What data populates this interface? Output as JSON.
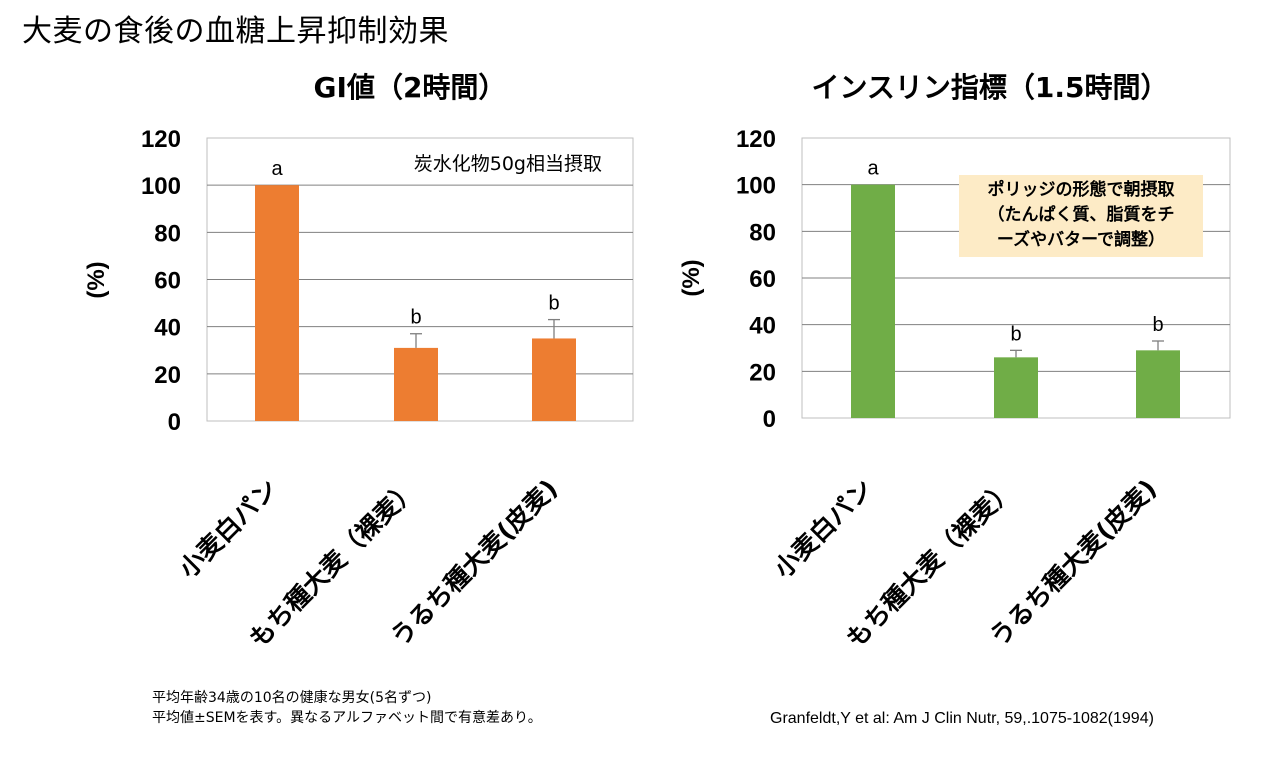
{
  "page": {
    "title": "大麦の食後の血糖上昇抑制効果"
  },
  "chart_data": [
    {
      "type": "bar",
      "title": "GI値（2時間）",
      "ylabel": "(%)",
      "ylim": [
        0,
        120
      ],
      "yticks": [
        "0",
        "20",
        "40",
        "60",
        "80",
        "100",
        "120"
      ],
      "categories": [
        "小麦白パン",
        "もち種大麦（裸麦）",
        "うるち種大麦(皮麦)"
      ],
      "values": [
        100,
        31,
        35
      ],
      "errors": [
        0,
        6,
        8
      ],
      "sig_labels": [
        "a",
        "b",
        "b"
      ],
      "bar_color": "#ED7D31",
      "annotation": "炭水化物50g相当摂取",
      "grid": true
    },
    {
      "type": "bar",
      "title": "インスリン指標（1.5時間）",
      "ylabel": "(%)",
      "ylim": [
        0,
        120
      ],
      "yticks": [
        "0",
        "20",
        "40",
        "60",
        "80",
        "100",
        "120"
      ],
      "categories": [
        "小麦白パン",
        "もち種大麦（裸麦）",
        "うるち種大麦(皮麦)"
      ],
      "values": [
        100,
        26,
        29
      ],
      "errors": [
        0,
        3,
        4
      ],
      "sig_labels": [
        "a",
        "b",
        "b"
      ],
      "bar_color": "#70AD47",
      "annotation_lines": [
        "ポリッジの形態で朝摂取",
        "（たんぱく質、脂質をチ",
        "ーズやバターで調整）"
      ],
      "annotation_bg": "#FDEBC6",
      "grid": true
    }
  ],
  "footnote": {
    "line1": "平均年齢34歳の10名の健康な男女(5名ずつ)",
    "line2": "平均値±SEMを表す。異なるアルファベット間で有意差あり。"
  },
  "citation": "Granfeldt,Y et al: Am J Clin Nutr, 59,.1075-1082(1994)"
}
